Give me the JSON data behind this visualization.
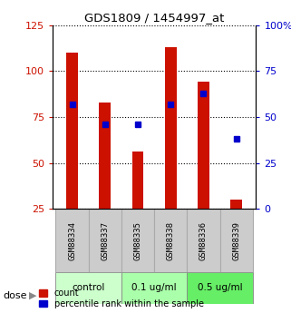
{
  "title": "GDS1809 / 1454997_at",
  "samples": [
    "GSM88334",
    "GSM88337",
    "GSM88335",
    "GSM88338",
    "GSM88336",
    "GSM88339"
  ],
  "bar_bottom": 25,
  "bar_tops": [
    110,
    83,
    56,
    113,
    94,
    30
  ],
  "percentile_values": [
    57,
    46,
    46,
    57,
    63,
    38
  ],
  "bar_color": "#cc1100",
  "marker_color": "#0000cc",
  "ylim_left": [
    25,
    125
  ],
  "ylim_right": [
    0,
    100
  ],
  "yticks_left": [
    25,
    50,
    75,
    100,
    125
  ],
  "yticks_right": [
    0,
    25,
    50,
    75,
    100
  ],
  "ytick_labels_right": [
    "0",
    "25",
    "50",
    "75",
    "100%"
  ],
  "groups": [
    {
      "label": "control",
      "indices": [
        0,
        1
      ],
      "color": "#ccffcc"
    },
    {
      "label": "0.1 ug/ml",
      "indices": [
        2,
        3
      ],
      "color": "#aaffaa"
    },
    {
      "label": "0.5 ug/ml",
      "indices": [
        4,
        5
      ],
      "color": "#66ee66"
    }
  ],
  "dose_label": "dose",
  "legend_count": "count",
  "legend_percentile": "percentile rank within the sample",
  "bar_width": 0.35,
  "left_tick_color": "#cc1100",
  "right_tick_color": "#0000cc",
  "sample_box_color": "#cccccc",
  "sample_box_edge": "#aaaaaa"
}
